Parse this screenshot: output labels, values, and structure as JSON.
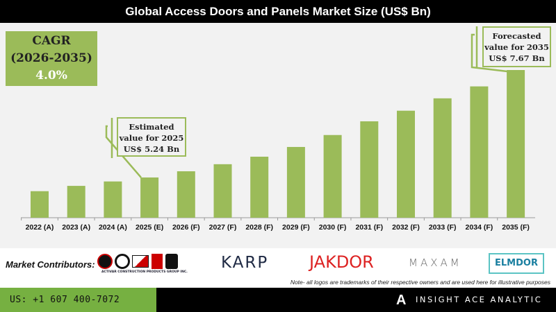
{
  "title": "Global Access Doors and Panels Market Size (US$ Bn)",
  "cagr": {
    "label": "CAGR",
    "period": "(2026-2035)",
    "value": "4.0%"
  },
  "callouts": [
    {
      "line1": "Estimated",
      "line2": "value for 2025",
      "line3": "US$ 5.24 Bn"
    },
    {
      "line1": "Forecasted",
      "line2": "value for 2035",
      "line3": "US$ 7.67 Bn"
    }
  ],
  "chart_data": {
    "type": "bar",
    "title": "Global Access Doors and Panels Market Size (US$ Bn)",
    "categories": [
      "2022 (A)",
      "2023 (A)",
      "2024 (A)",
      "2025 (E)",
      "2026 (F)",
      "2027 (F)",
      "2028 (F)",
      "2029 (F)",
      "2030 (F)",
      "2031 (F)",
      "2032 (F)",
      "2033 (F)",
      "2034 (F)",
      "2035 (F)"
    ],
    "values": [
      4.93,
      5.05,
      5.15,
      5.24,
      5.38,
      5.54,
      5.71,
      5.93,
      6.2,
      6.51,
      6.75,
      7.03,
      7.3,
      7.67
    ],
    "ylim": [
      4.33,
      7.67
    ],
    "grid": false,
    "bar_color": "#9bbb59"
  },
  "contributors": {
    "label": "Market Contributors:",
    "group_caption": "ACTIVAR CONSTRUCTION PRODUCTS GROUP INC.",
    "logos": [
      "KARP",
      "JAKDOR",
      "MAXAM",
      "ELMDOR"
    ],
    "note": "Note- all logos are trademarks of their respective owners and are used here for illustrative purposes"
  },
  "footer": {
    "phone": "US: +1 607 400-7072",
    "brand": "INSIGHT ACE ANALYTIC"
  }
}
